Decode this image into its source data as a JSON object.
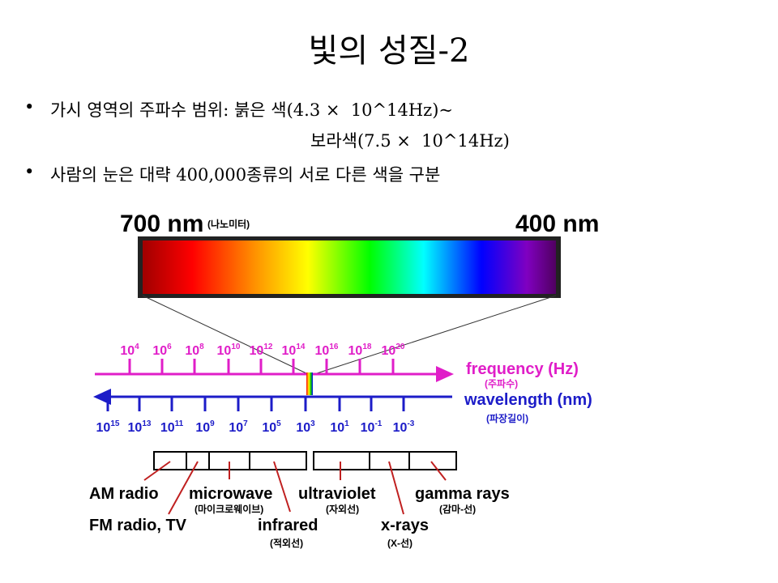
{
  "header": {
    "title": "빛의 성질-2"
  },
  "bullets": [
    {
      "lines": [
        "가시 영역의 주파수 범위: 붉은 색(4.3 ×  10^14Hz)~",
        "보라색(7.5 ×  10^14Hz)"
      ]
    },
    {
      "lines": [
        "사람의 눈은 대략 400,000종류의 서로 다른 색을 구분"
      ]
    }
  ],
  "diagram": {
    "left_wavelength": "700 nm",
    "left_wavelength_note": "(나노미터)",
    "right_wavelength": "400 nm",
    "frequency_ticks": [
      {
        "base": "10",
        "exp": "4"
      },
      {
        "base": "10",
        "exp": "6"
      },
      {
        "base": "10",
        "exp": "8"
      },
      {
        "base": "10",
        "exp": "10"
      },
      {
        "base": "10",
        "exp": "12"
      },
      {
        "base": "10",
        "exp": "14"
      },
      {
        "base": "10",
        "exp": "16"
      },
      {
        "base": "10",
        "exp": "18"
      },
      {
        "base": "10",
        "exp": "20"
      }
    ],
    "frequency_label": "frequency (Hz)",
    "frequency_note": "(주파수)",
    "wavelength_ticks": [
      {
        "base": "10",
        "exp": "15"
      },
      {
        "base": "10",
        "exp": "13"
      },
      {
        "base": "10",
        "exp": "11"
      },
      {
        "base": "10",
        "exp": "9"
      },
      {
        "base": "10",
        "exp": "7"
      },
      {
        "base": "10",
        "exp": "5"
      },
      {
        "base": "10",
        "exp": "3"
      },
      {
        "base": "10",
        "exp": "1"
      },
      {
        "base": "10",
        "exp": "-1"
      },
      {
        "base": "10",
        "exp": "-3"
      }
    ],
    "wavelength_label": "wavelength (nm)",
    "wavelength_note": "(파장길이)",
    "bands": [
      {
        "label": "AM radio"
      },
      {
        "label": "FM radio, TV"
      },
      {
        "label": "microwave",
        "note": "(마이크로웨이브)"
      },
      {
        "label": "infrared",
        "note": "(적외선)"
      },
      {
        "label": "ultraviolet",
        "note": "(자외선)"
      },
      {
        "label": "x-rays",
        "note": "(X-선)"
      },
      {
        "label": "gamma rays",
        "note": "(감마-선)"
      }
    ]
  }
}
